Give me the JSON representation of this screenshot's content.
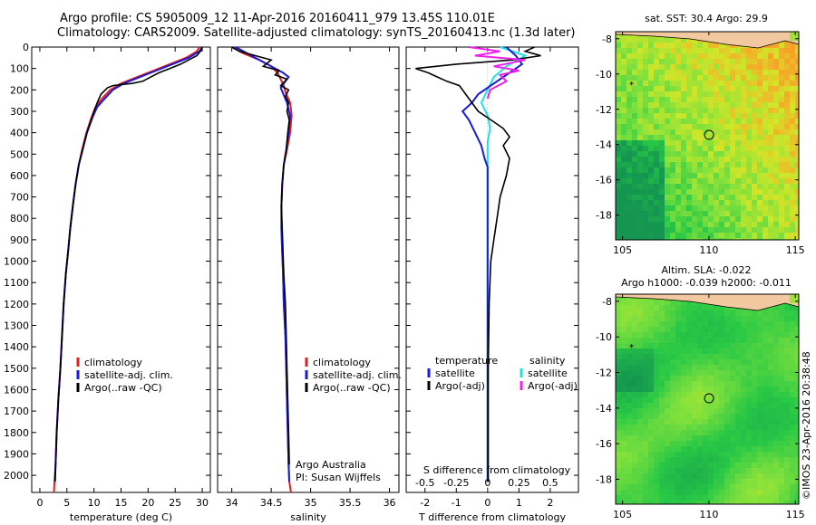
{
  "header": {
    "line1": "Argo profile: CS 5905009_12 11-Apr-2016 20160411_979 13.45S 110.01E",
    "line2": "Climatology: CARS2009. Satellite-adjusted climatology: synTS_20160413.nc (1.3d later)"
  },
  "colors": {
    "climatology": "#e02020",
    "satellite": "#1a1adc",
    "argo": "#000000",
    "salinity_satellite": "#20e0e0",
    "salinity_argo": "#ee20ee",
    "land": "#f2c8a0"
  },
  "chart_data": [
    {
      "type": "line",
      "name": "temperature-profile",
      "xlabel": "temperature (deg C)",
      "ylabel": "",
      "xlim": [
        -1.5,
        31.5
      ],
      "ylim": [
        2080,
        0
      ],
      "xticks": [
        0,
        5,
        10,
        15,
        20,
        25,
        30
      ],
      "yticks": [
        0,
        100,
        200,
        300,
        400,
        500,
        600,
        700,
        800,
        900,
        1000,
        1100,
        1200,
        1300,
        1400,
        1500,
        1600,
        1700,
        1800,
        1900,
        2000
      ],
      "legend": [
        "climatology",
        "satellite-adj. clim.",
        "Argo(..raw -QC)"
      ],
      "series": [
        {
          "name": "climatology",
          "x": [
            29.5,
            29,
            27,
            24,
            21,
            18,
            15,
            13,
            11.5,
            10.3,
            9.5,
            8.6,
            7.8,
            7.2,
            6.6,
            6.1,
            5.6,
            5.2,
            4.8,
            4.4,
            4.1,
            3.8,
            3.4,
            3.1,
            2.9,
            2.7,
            2.6
          ],
          "y": [
            0,
            20,
            50,
            80,
            110,
            140,
            170,
            200,
            240,
            280,
            330,
            400,
            480,
            550,
            640,
            740,
            850,
            960,
            1060,
            1200,
            1350,
            1500,
            1650,
            1800,
            1950,
            2030,
            2080
          ]
        },
        {
          "name": "satellite-adj. clim.",
          "x": [
            30,
            29.5,
            27.5,
            24.5,
            21.5,
            18.5,
            15.5,
            13.5,
            12,
            10.6,
            9.7,
            8.7,
            7.9,
            7.2,
            6.6,
            6.1,
            5.6,
            5.2,
            4.8,
            4.4,
            4.1,
            3.8,
            3.4,
            3.1,
            2.9,
            2.8
          ],
          "y": [
            0,
            20,
            50,
            80,
            110,
            140,
            170,
            200,
            240,
            280,
            330,
            400,
            480,
            550,
            640,
            740,
            850,
            960,
            1060,
            1200,
            1350,
            1500,
            1650,
            1800,
            1950,
            2030
          ]
        },
        {
          "name": "Argo(..raw -QC)",
          "x": [
            30,
            29.8,
            29,
            27.5,
            26,
            24,
            22,
            20.5,
            19,
            17,
            15,
            13.5,
            12.5,
            11.3,
            10.6,
            10,
            9.5,
            8.7,
            7.9,
            7.2,
            6.6,
            6.1,
            5.6,
            5.2,
            4.8,
            4.4,
            4.1,
            3.8,
            3.4,
            3.1,
            2.9,
            2.8
          ],
          "y": [
            0,
            15,
            40,
            60,
            80,
            100,
            120,
            140,
            160,
            170,
            175,
            180,
            190,
            220,
            260,
            300,
            340,
            400,
            480,
            550,
            640,
            740,
            850,
            960,
            1060,
            1200,
            1350,
            1500,
            1650,
            1800,
            1950,
            2030
          ]
        }
      ]
    },
    {
      "type": "line",
      "name": "salinity-profile",
      "xlabel": "salinity",
      "ylabel": "",
      "xlim": [
        33.82,
        36.12
      ],
      "ylim": [
        2080,
        0
      ],
      "xticks": [
        34,
        34.5,
        35,
        35.5,
        36
      ],
      "legend": [
        "climatology",
        "satellite-adj. clim.",
        "Argo(..raw -QC)"
      ],
      "annotations": [
        "Argo Australia",
        "PI: Susan Wijffels"
      ],
      "series": [
        {
          "name": "climatology",
          "x": [
            34.0,
            34.15,
            34.35,
            34.5,
            34.58,
            34.62,
            34.66,
            34.68,
            34.74,
            34.76,
            34.74,
            34.7,
            34.66,
            34.64,
            34.63,
            34.63,
            34.64,
            34.65,
            34.66,
            34.68,
            34.69,
            34.7,
            34.71,
            34.72,
            34.73,
            34.75
          ],
          "y": [
            0,
            30,
            60,
            90,
            120,
            150,
            180,
            210,
            260,
            320,
            400,
            480,
            550,
            640,
            740,
            850,
            960,
            1060,
            1200,
            1350,
            1500,
            1650,
            1800,
            1950,
            2030,
            2080
          ]
        },
        {
          "name": "satellite-adj. clim.",
          "x": [
            34.05,
            34.2,
            34.35,
            34.5,
            34.65,
            34.72,
            34.68,
            34.62,
            34.7,
            34.74,
            34.72,
            34.69,
            34.66,
            34.64,
            34.63,
            34.63,
            34.64,
            34.65,
            34.66,
            34.68,
            34.69,
            34.7,
            34.71,
            34.72,
            34.73
          ],
          "y": [
            0,
            30,
            60,
            90,
            120,
            140,
            160,
            190,
            260,
            320,
            400,
            480,
            550,
            640,
            740,
            850,
            960,
            1060,
            1200,
            1350,
            1500,
            1650,
            1800,
            1950,
            2030
          ]
        },
        {
          "name": "Argo(..raw -QC)",
          "x": [
            34.0,
            34.1,
            34.3,
            34.5,
            34.4,
            34.6,
            34.55,
            34.7,
            34.62,
            34.72,
            34.68,
            34.72,
            34.7,
            34.73,
            34.71,
            34.69,
            34.66,
            34.64,
            34.63,
            34.64,
            34.65,
            34.66,
            34.68,
            34.69,
            34.7,
            34.71,
            34.72,
            34.73
          ],
          "y": [
            0,
            20,
            40,
            60,
            90,
            110,
            130,
            150,
            180,
            200,
            230,
            260,
            300,
            340,
            400,
            480,
            550,
            640,
            740,
            850,
            960,
            1060,
            1200,
            1350,
            1500,
            1650,
            1800,
            1950
          ]
        }
      ]
    },
    {
      "type": "line",
      "name": "difference-profile",
      "xlabel": "T difference from climatology",
      "x2label": "S difference from climatology",
      "xlim": [
        -2.6,
        2.9
      ],
      "x2lim": [
        -0.65,
        0.725
      ],
      "ylim": [
        2080,
        0
      ],
      "xticks": [
        -2,
        -1,
        0,
        1,
        2
      ],
      "x2ticks": [
        -0.5,
        -0.25,
        0,
        0.25,
        0.5
      ],
      "legend": {
        "temperature_title": "temperature",
        "salinity_title": "salinity",
        "temperature": [
          "satellite",
          "Argo(-adj)"
        ],
        "salinity": [
          "satellite",
          "Argo(-adj)"
        ]
      },
      "series": [
        {
          "name": "T satellite",
          "x": [
            0.6,
            0.9,
            1.1,
            0.8,
            0.4,
            0.1,
            -0.3,
            -0.5,
            -0.8,
            -0.6,
            -0.4,
            -0.2,
            -0.1,
            0,
            0,
            0,
            0,
            0,
            0,
            0,
            0,
            0
          ],
          "y": [
            0,
            40,
            80,
            110,
            150,
            180,
            220,
            260,
            300,
            340,
            400,
            460,
            520,
            560,
            600,
            800,
            1000,
            1200,
            1500,
            1700,
            1900,
            2030
          ]
        },
        {
          "name": "T Argo(-adj)",
          "x": [
            1.5,
            1.2,
            1.7,
            0.8,
            -1.0,
            -2.3,
            -1.9,
            -1.6,
            -1.3,
            -0.9,
            -0.7,
            -0.5,
            -0.3,
            0.1,
            0.5,
            0.7,
            0.5,
            0.7,
            0.6,
            0.4,
            0.3,
            0.2,
            0.1,
            0.05,
            0.02,
            0.02
          ],
          "y": [
            0,
            20,
            40,
            60,
            80,
            100,
            120,
            140,
            160,
            180,
            220,
            260,
            300,
            340,
            380,
            420,
            460,
            520,
            600,
            700,
            800,
            900,
            1000,
            1200,
            1500,
            2030
          ]
        },
        {
          "name": "S satellite",
          "x": [
            0.1,
            0.3,
            0.15,
            0.05,
            0,
            -0.05,
            0,
            0.02,
            0,
            0,
            0,
            0,
            0,
            0
          ],
          "y": [
            0,
            40,
            90,
            140,
            200,
            260,
            320,
            380,
            440,
            600,
            900,
            1300,
            1700,
            2030
          ]
        },
        {
          "name": "S Argo(-adj)",
          "x": [
            -0.15,
            0.1,
            -0.1,
            0.3,
            0.05,
            0.25,
            0.1,
            0.15,
            0.02,
            0
          ],
          "y": [
            0,
            20,
            40,
            60,
            90,
            110,
            130,
            160,
            200,
            240
          ]
        }
      ]
    },
    {
      "type": "heatmap",
      "name": "sst-map",
      "title": "sat. SST: 30.4  Argo: 29.9",
      "xlim": [
        104.6,
        115.2
      ],
      "ylim": [
        -19.4,
        -7.6
      ],
      "xticks": [
        105,
        110,
        115
      ],
      "yticks": [
        -8,
        -10,
        -12,
        -14,
        -16,
        -18
      ],
      "marker": {
        "lon": 110.01,
        "lat": -13.45
      }
    },
    {
      "type": "heatmap",
      "name": "sla-map",
      "title": "Altim. SLA: -0.022",
      "subtitle": "Argo h1000: -0.039  h2000: -0.011",
      "xlim": [
        104.6,
        115.2
      ],
      "ylim": [
        -19.4,
        -7.6
      ],
      "xticks": [
        105,
        110,
        115
      ],
      "yticks": [
        -8,
        -10,
        -12,
        -14,
        -16,
        -18
      ],
      "marker": {
        "lon": 110.01,
        "lat": -13.45
      }
    }
  ],
  "credit": "©IMOS 23-Apr-2016 20:38:48"
}
